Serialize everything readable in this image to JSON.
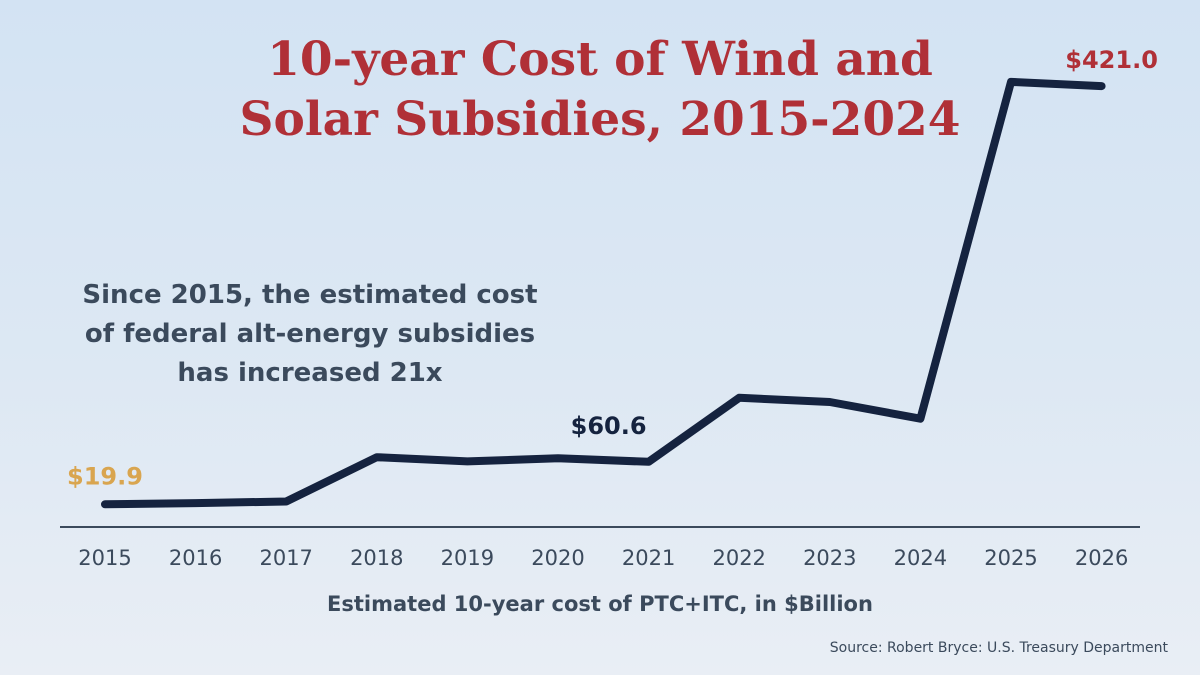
{
  "title_lines": [
    "10-year Cost of Wind and",
    "Solar Subsidies, 2015-2024"
  ],
  "annotation_lines": [
    "Since 2015, the estimated cost",
    "of federal alt-energy subsidies",
    "has increased 21x"
  ],
  "source": "Source: Robert Bryce: U.S. Treasury Department",
  "colors": {
    "title": "#b03037",
    "line": "#15233f",
    "axis": "#3b4a5c",
    "label_start": "#d9a54f",
    "label_mid": "#15233f",
    "label_end": "#b03037",
    "background": "#d8e5f2"
  },
  "chart_data": {
    "type": "line",
    "x": [
      "2015",
      "2016",
      "2017",
      "2018",
      "2019",
      "2020",
      "2021",
      "2022",
      "2023",
      "2024",
      "2025",
      "2026"
    ],
    "series": [
      {
        "values": [
          19.9,
          21.0,
          22.5,
          65.0,
          61.0,
          64.0,
          60.6,
          122.0,
          118.0,
          102.0,
          425.0,
          421.0
        ]
      }
    ],
    "data_labels": [
      {
        "index": 0,
        "text": "$19.9",
        "color_key": "label_start"
      },
      {
        "index": 6,
        "text": "$60.6",
        "color_key": "label_mid"
      },
      {
        "index": 11,
        "text": "$421.0",
        "color_key": "label_end"
      }
    ],
    "xlabel": "Estimated 10-year cost of PTC+ITC, in $Billion",
    "ylabel": "",
    "ylim": [
      0,
      470
    ],
    "grid": false,
    "y_axis_visible": false
  }
}
